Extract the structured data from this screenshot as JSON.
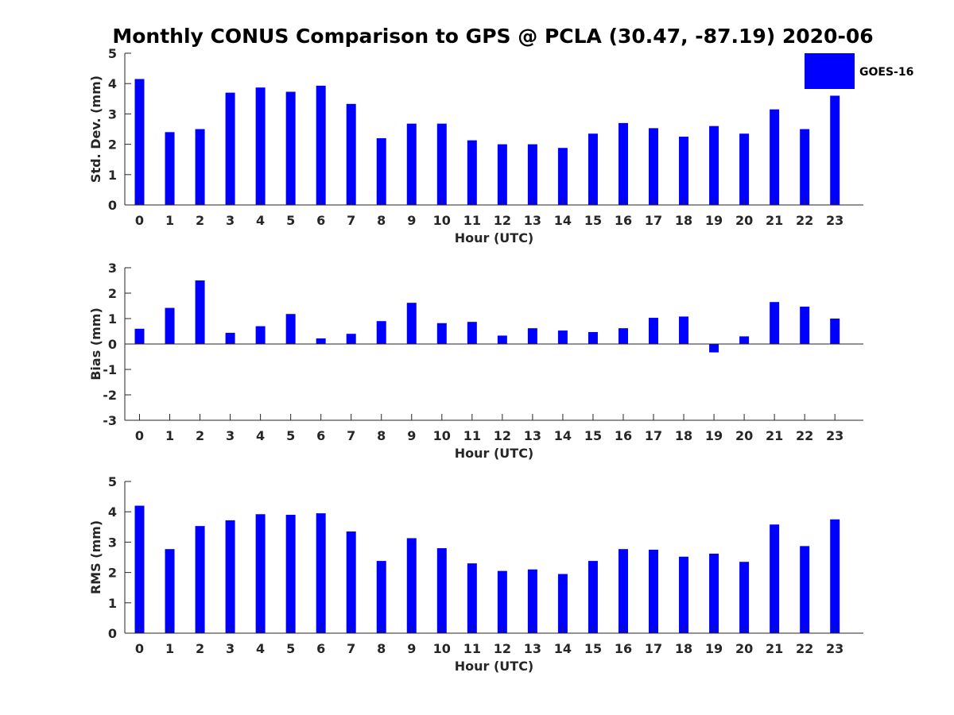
{
  "title": "Monthly CONUS Comparison to GPS @ PCLA (30.47, -87.19) 2020-06",
  "legend": {
    "label": "GOES-16",
    "color": "#0000ff",
    "placement": "top-right"
  },
  "chart_data": [
    {
      "type": "bar",
      "ylabel": "Std. Dev. (mm)",
      "xlabel": "Hour (UTC)",
      "ylim": [
        0,
        5
      ],
      "yticks": [
        "0",
        "1",
        "2",
        "3",
        "4",
        "5"
      ],
      "categories": [
        "0",
        "1",
        "2",
        "3",
        "4",
        "5",
        "6",
        "7",
        "8",
        "9",
        "10",
        "11",
        "12",
        "13",
        "14",
        "15",
        "16",
        "17",
        "18",
        "19",
        "20",
        "21",
        "22",
        "23"
      ],
      "series": [
        {
          "name": "GOES-16",
          "color": "#0000ff",
          "values": [
            4.15,
            2.4,
            2.5,
            3.7,
            3.87,
            3.73,
            3.93,
            3.33,
            2.2,
            2.68,
            2.68,
            2.13,
            2.0,
            2.0,
            1.88,
            2.35,
            2.7,
            2.53,
            2.25,
            2.6,
            2.35,
            3.15,
            2.5,
            3.6
          ]
        }
      ],
      "grid": false
    },
    {
      "type": "bar",
      "ylabel": "Bias (mm)",
      "xlabel": "Hour (UTC)",
      "ylim": [
        -3,
        3
      ],
      "yticks": [
        "-3",
        "-2",
        "-1",
        "0",
        "1",
        "2",
        "3"
      ],
      "categories": [
        "0",
        "1",
        "2",
        "3",
        "4",
        "5",
        "6",
        "7",
        "8",
        "9",
        "10",
        "11",
        "12",
        "13",
        "14",
        "15",
        "16",
        "17",
        "18",
        "19",
        "20",
        "21",
        "22",
        "23"
      ],
      "series": [
        {
          "name": "GOES-16",
          "color": "#0000ff",
          "values": [
            0.6,
            1.42,
            2.5,
            0.44,
            0.7,
            1.18,
            0.22,
            0.4,
            0.9,
            1.62,
            0.82,
            0.87,
            0.33,
            0.62,
            0.53,
            0.47,
            0.62,
            1.03,
            1.08,
            -0.33,
            0.3,
            1.65,
            1.47,
            1.0
          ]
        }
      ],
      "zero_line": true,
      "grid": false
    },
    {
      "type": "bar",
      "ylabel": "RMS (mm)",
      "xlabel": "Hour (UTC)",
      "ylim": [
        0,
        5
      ],
      "yticks": [
        "0",
        "1",
        "2",
        "3",
        "4",
        "5"
      ],
      "categories": [
        "0",
        "1",
        "2",
        "3",
        "4",
        "5",
        "6",
        "7",
        "8",
        "9",
        "10",
        "11",
        "12",
        "13",
        "14",
        "15",
        "16",
        "17",
        "18",
        "19",
        "20",
        "21",
        "22",
        "23"
      ],
      "series": [
        {
          "name": "GOES-16",
          "color": "#0000ff",
          "values": [
            4.2,
            2.77,
            3.53,
            3.72,
            3.92,
            3.9,
            3.95,
            3.35,
            2.38,
            3.13,
            2.8,
            2.3,
            2.05,
            2.1,
            1.95,
            2.38,
            2.77,
            2.75,
            2.52,
            2.62,
            2.35,
            3.58,
            2.87,
            3.75
          ]
        }
      ],
      "grid": false
    }
  ]
}
